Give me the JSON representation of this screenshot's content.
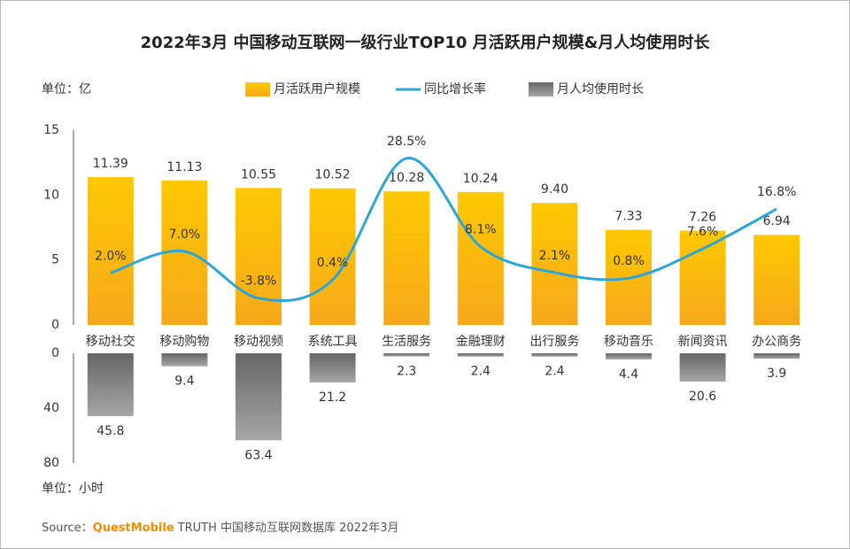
{
  "chart_data": [
    {
      "type": "bar",
      "title": "2022年3月 中国移动互联网一级行业TOP10 月活跃用户规模&月人均使用时长",
      "unit_label": "单位：亿",
      "categories": [
        "移动社交",
        "移动购物",
        "移动视频",
        "系统工具",
        "生活服务",
        "金融理财",
        "出行服务",
        "移动音乐",
        "新闻资讯",
        "办公商务"
      ],
      "series": [
        {
          "name": "月活跃用户规模",
          "color": "#fcc200",
          "values": [
            11.39,
            11.13,
            10.55,
            10.52,
            10.28,
            10.24,
            9.4,
            7.33,
            7.26,
            6.94
          ],
          "value_labels": [
            "11.39",
            "11.13",
            "10.55",
            "10.52",
            "10.28",
            "10.24",
            "9.40",
            "7.33",
            "7.26",
            "6.94"
          ]
        },
        {
          "name": "同比增长率",
          "type": "line",
          "axis": "y2",
          "color": "#2ba6d8",
          "values": [
            2.0,
            7.0,
            -3.8,
            0.4,
            28.5,
            8.1,
            2.1,
            0.8,
            7.6,
            16.8
          ],
          "value_labels": [
            "2.0%",
            "7.0%",
            "-3.8%",
            "0.4%",
            "28.5%",
            "8.1%",
            "2.1%",
            "0.8%",
            "7.6%",
            "16.8%"
          ]
        }
      ],
      "ylim": [
        0,
        15
      ],
      "yticks": [
        0,
        5,
        10,
        15
      ],
      "y2lim": [
        -10,
        35
      ]
    },
    {
      "type": "bar",
      "unit_label": "单位：小时",
      "inverted": true,
      "series": [
        {
          "name": "月人均使用时长",
          "color": "#7a7a7a",
          "values": [
            45.8,
            9.4,
            63.4,
            21.2,
            2.3,
            2.4,
            2.4,
            4.4,
            20.6,
            3.9
          ]
        }
      ],
      "ylim": [
        0,
        80
      ],
      "yticks": [
        0,
        40,
        80
      ]
    }
  ],
  "source": {
    "prefix": "Source：",
    "brand": "QuestMobile",
    "rest": "TRUTH 中国移动互联网数据库 2022年3月"
  }
}
